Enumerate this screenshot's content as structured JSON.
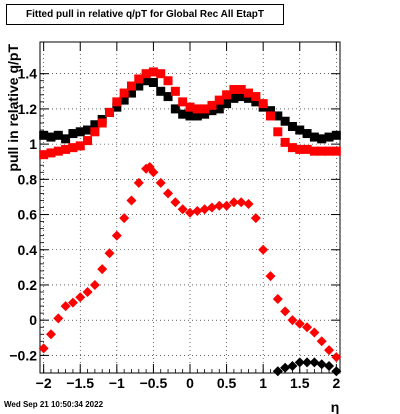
{
  "footer": {
    "date": "Wed Sep 21 10:50:34 2022"
  },
  "chart_data": {
    "type": "scatter",
    "title": "Fitted pull in relative q/pT for Global Rec All EtapT",
    "xlabel": "η",
    "ylabel": "pull in relative q/pT",
    "xlim": [
      -2.05,
      2.05
    ],
    "ylim": [
      -0.3,
      1.58
    ],
    "grid": true,
    "x_ticks": [
      -2,
      -1.5,
      -1,
      -0.5,
      0,
      0.5,
      1,
      1.5,
      2
    ],
    "x_tick_labels": [
      "−2",
      "−1.5",
      "−1",
      "−0.5",
      "0",
      "0.5",
      "1",
      "1.5",
      "2"
    ],
    "y_ticks": [
      -0.2,
      0,
      0.2,
      0.4,
      0.6,
      0.8,
      1,
      1.2,
      1.4
    ],
    "y_tick_labels": [
      "−0.2",
      "0",
      "0.2",
      "0.4",
      "0.6",
      "0.8",
      "1",
      "1.2",
      "1.4"
    ],
    "series": [
      {
        "marker": "square",
        "color": "#000000",
        "x": [
          -2.0,
          -1.9,
          -1.8,
          -1.7,
          -1.6,
          -1.5,
          -1.4,
          -1.3,
          -1.2,
          -1.1,
          -1.0,
          -0.9,
          -0.8,
          -0.7,
          -0.6,
          -0.5,
          -0.4,
          -0.3,
          -0.2,
          -0.1,
          0.0,
          0.1,
          0.2,
          0.3,
          0.4,
          0.5,
          0.6,
          0.7,
          0.8,
          0.9,
          1.0,
          1.1,
          1.2,
          1.3,
          1.4,
          1.5,
          1.6,
          1.7,
          1.8,
          1.9,
          2.0
        ],
        "y": [
          1.05,
          1.04,
          1.05,
          1.03,
          1.06,
          1.07,
          1.08,
          1.11,
          1.14,
          1.18,
          1.21,
          1.25,
          1.29,
          1.33,
          1.36,
          1.35,
          1.3,
          1.27,
          1.2,
          1.17,
          1.16,
          1.16,
          1.17,
          1.19,
          1.2,
          1.23,
          1.26,
          1.27,
          1.26,
          1.24,
          1.21,
          1.19,
          1.16,
          1.13,
          1.1,
          1.08,
          1.06,
          1.04,
          1.03,
          1.04,
          1.05
        ]
      },
      {
        "marker": "square",
        "color": "#ff0000",
        "x": [
          -2.0,
          -1.9,
          -1.8,
          -1.7,
          -1.6,
          -1.5,
          -1.4,
          -1.3,
          -1.2,
          -1.1,
          -1.0,
          -0.9,
          -0.8,
          -0.7,
          -0.6,
          -0.5,
          -0.4,
          -0.3,
          -0.2,
          -0.1,
          0.0,
          0.1,
          0.2,
          0.3,
          0.4,
          0.5,
          0.6,
          0.7,
          0.8,
          0.9,
          1.0,
          1.1,
          1.2,
          1.3,
          1.4,
          1.5,
          1.6,
          1.7,
          1.8,
          1.9,
          2.0
        ],
        "y": [
          0.94,
          0.95,
          0.96,
          0.97,
          0.98,
          0.99,
          1.02,
          1.07,
          1.12,
          1.18,
          1.24,
          1.29,
          1.33,
          1.37,
          1.4,
          1.41,
          1.4,
          1.36,
          1.3,
          1.24,
          1.21,
          1.2,
          1.2,
          1.22,
          1.25,
          1.28,
          1.31,
          1.31,
          1.29,
          1.27,
          1.23,
          1.16,
          1.07,
          1.01,
          0.98,
          0.97,
          0.97,
          0.96,
          0.96,
          0.96,
          0.96
        ]
      },
      {
        "marker": "diamond",
        "color": "#ff0000",
        "x": [
          -2.0,
          -1.9,
          -1.8,
          -1.7,
          -1.6,
          -1.5,
          -1.4,
          -1.3,
          -1.2,
          -1.1,
          -1.0,
          -0.9,
          -0.8,
          -0.7,
          -0.6,
          -0.55,
          -0.5,
          -0.4,
          -0.3,
          -0.2,
          -0.1,
          0.0,
          0.1,
          0.2,
          0.3,
          0.4,
          0.5,
          0.6,
          0.7,
          0.8,
          0.9,
          1.0,
          1.1,
          1.2,
          1.3,
          1.4,
          1.5,
          1.6,
          1.7,
          1.8,
          1.9,
          2.0
        ],
        "y": [
          -0.16,
          -0.08,
          0.01,
          0.08,
          0.1,
          0.13,
          0.16,
          0.2,
          0.29,
          0.38,
          0.48,
          0.58,
          0.68,
          0.78,
          0.86,
          0.87,
          0.84,
          0.78,
          0.72,
          0.67,
          0.63,
          0.61,
          0.62,
          0.63,
          0.64,
          0.65,
          0.65,
          0.67,
          0.67,
          0.66,
          0.58,
          0.4,
          0.25,
          0.12,
          0.05,
          0.0,
          -0.02,
          -0.04,
          -0.07,
          -0.12,
          -0.17,
          -0.21
        ]
      },
      {
        "marker": "diamond",
        "color": "#000000",
        "x": [
          1.2,
          1.3,
          1.4,
          1.5,
          1.6,
          1.7,
          1.8,
          1.9,
          2.0
        ],
        "y": [
          -0.29,
          -0.27,
          -0.26,
          -0.24,
          -0.24,
          -0.24,
          -0.25,
          -0.26,
          -0.29
        ]
      }
    ]
  }
}
